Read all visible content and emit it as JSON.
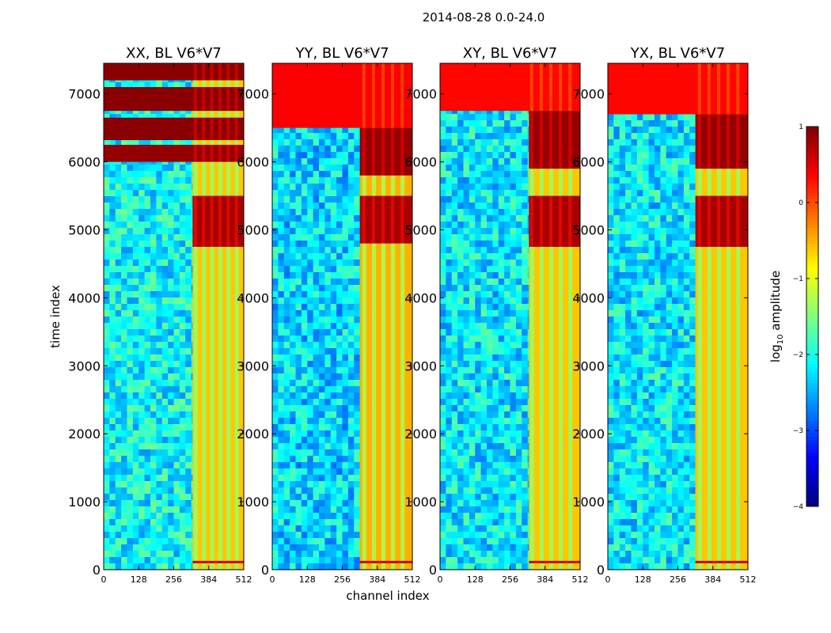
{
  "figure": {
    "suptitle": "2014-08-28 0.0-24.0",
    "xlabel": "channel index",
    "ylabel": "time index",
    "colorbar_label": "log",
    "colorbar_label_sub": "10",
    "colorbar_label_rest": " amplitude"
  },
  "colors": {
    "low": "#00007f",
    "mid": "#7fff7f",
    "high": "#7f0000",
    "background_field": "#2f7fe0"
  },
  "chart_data": {
    "type": "heatmap",
    "colormap": "jet",
    "xlim": [
      0,
      512
    ],
    "ylim": [
      0,
      7450
    ],
    "xticks": [
      0,
      128,
      256,
      384,
      512
    ],
    "yticks": [
      0,
      1000,
      2000,
      3000,
      4000,
      5000,
      6000,
      7000
    ],
    "colorbar": {
      "label": "log10 amplitude",
      "range": [
        -4,
        1
      ],
      "ticks": [
        "-4",
        "-3",
        "-2",
        "-1",
        "0",
        "1"
      ]
    },
    "panels": [
      {
        "title": "XX, BL V6*V7",
        "baseline": -2.1,
        "band": {
          "x_start": 325,
          "x_end": 512,
          "level": -0.6,
          "stripes": [
            335,
            365,
            395,
            425,
            455,
            485
          ]
        },
        "strong_rows": [
          {
            "y0": 6000,
            "y1": 6250,
            "level": 0.9,
            "x_start": 0
          },
          {
            "y0": 6320,
            "y1": 6650,
            "level": 0.95,
            "x_start": 0
          },
          {
            "y0": 6750,
            "y1": 7100,
            "level": 0.95,
            "x_start": 0
          },
          {
            "y0": 7200,
            "y1": 7450,
            "level": 0.95,
            "x_start": 0
          },
          {
            "y0": 4750,
            "y1": 5500,
            "level": 0.8,
            "x_start": 325
          }
        ]
      },
      {
        "title": "YY, BL V6*V7",
        "baseline": -2.3,
        "band": {
          "x_start": 320,
          "x_end": 512,
          "level": -0.5,
          "stripes": [
            335,
            370,
            405,
            440,
            475
          ]
        },
        "strong_rows": [
          {
            "y0": 6500,
            "y1": 7450,
            "level": 0.4,
            "x_start": 0
          },
          {
            "y0": 5800,
            "y1": 6500,
            "level": 0.9,
            "x_start": 320
          },
          {
            "y0": 4800,
            "y1": 5500,
            "level": 0.8,
            "x_start": 320
          }
        ]
      },
      {
        "title": "XY, BL V6*V7",
        "baseline": -2.2,
        "band": {
          "x_start": 325,
          "x_end": 512,
          "level": -0.6,
          "stripes": [
            335,
            370,
            405,
            440,
            475
          ]
        },
        "strong_rows": [
          {
            "y0": 6750,
            "y1": 7450,
            "level": 0.35,
            "x_start": 0
          },
          {
            "y0": 5900,
            "y1": 6750,
            "level": 0.9,
            "x_start": 325
          },
          {
            "y0": 4750,
            "y1": 5500,
            "level": 0.8,
            "x_start": 325
          }
        ]
      },
      {
        "title": "YX, BL V6*V7",
        "baseline": -2.2,
        "band": {
          "x_start": 320,
          "x_end": 512,
          "level": -0.6,
          "stripes": [
            335,
            370,
            405,
            440,
            475
          ]
        },
        "strong_rows": [
          {
            "y0": 6700,
            "y1": 7450,
            "level": 0.35,
            "x_start": 0
          },
          {
            "y0": 5900,
            "y1": 6700,
            "level": 0.9,
            "x_start": 320
          },
          {
            "y0": 4750,
            "y1": 5500,
            "level": 0.8,
            "x_start": 320
          }
        ]
      }
    ]
  }
}
